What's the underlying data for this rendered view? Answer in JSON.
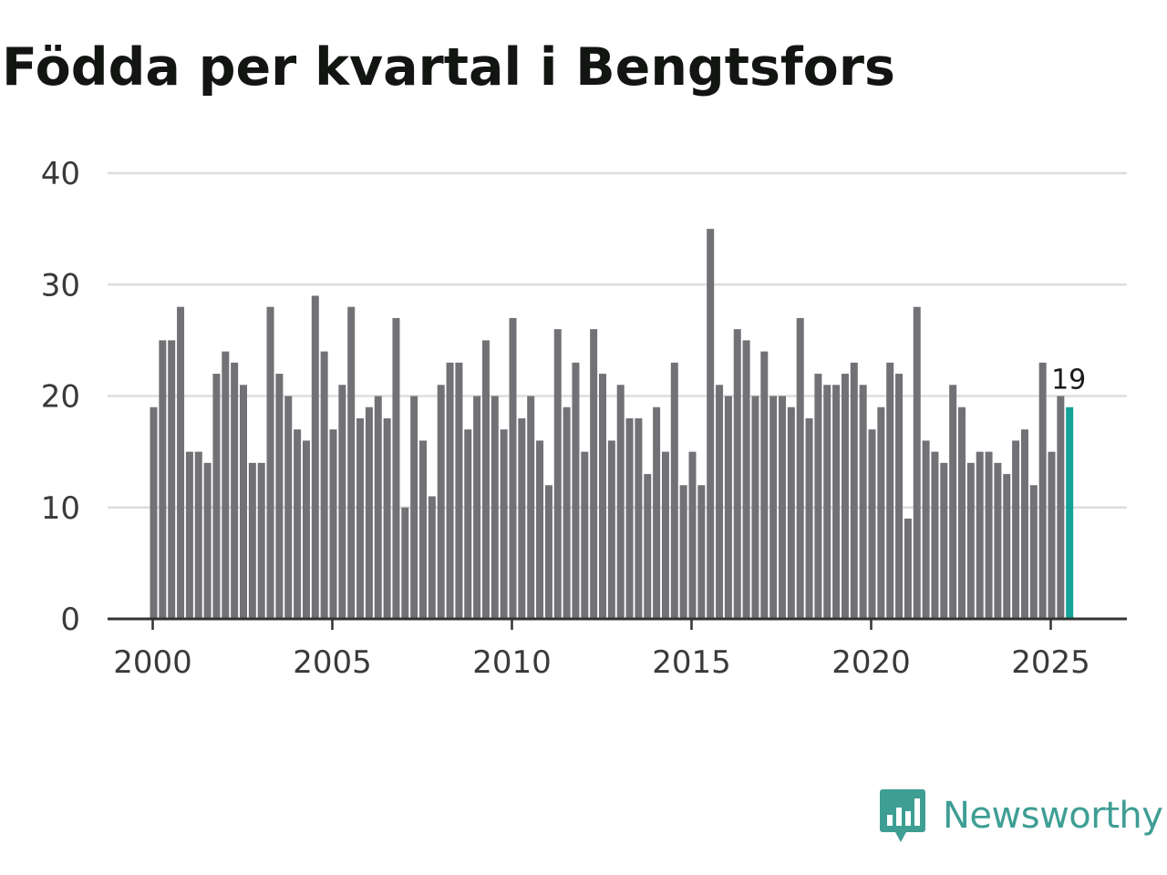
{
  "title": "Födda per kvartal i Bengtsfors",
  "brand": {
    "name": "Newsworthy",
    "icon": "newsworthy-logo-icon",
    "color": "#3e9e94"
  },
  "colors": {
    "bar": "#727175",
    "highlight": "#14a396",
    "grid": "#dddddd",
    "axis": "#333333"
  },
  "chart_data": {
    "type": "bar",
    "title": "Födda per kvartal i Bengtsfors",
    "xlabel": "",
    "ylabel": "",
    "ylim": [
      0,
      40
    ],
    "yticks": [
      0,
      10,
      20,
      30,
      40
    ],
    "xticks": [
      "2000",
      "2005",
      "2010",
      "2015",
      "2020",
      "2025"
    ],
    "xtick_years": [
      2000,
      2005,
      2010,
      2015,
      2020,
      2025
    ],
    "x_start": 2000,
    "periods_per_year": 4,
    "grid": true,
    "series": [
      {
        "name": "Födda",
        "values": [
          19,
          25,
          25,
          28,
          15,
          15,
          14,
          22,
          24,
          23,
          21,
          14,
          14,
          28,
          22,
          20,
          17,
          16,
          29,
          24,
          17,
          21,
          28,
          18,
          19,
          20,
          18,
          27,
          10,
          20,
          16,
          11,
          21,
          23,
          23,
          17,
          20,
          25,
          20,
          17,
          27,
          18,
          20,
          16,
          12,
          26,
          19,
          23,
          15,
          26,
          22,
          16,
          21,
          18,
          18,
          13,
          19,
          15,
          23,
          12,
          15,
          12,
          35,
          21,
          20,
          26,
          25,
          20,
          24,
          20,
          20,
          19,
          27,
          18,
          22,
          21,
          21,
          22,
          23,
          21,
          17,
          19,
          23,
          22,
          9,
          28,
          16,
          15,
          14,
          21,
          19,
          14,
          15,
          15,
          14,
          13,
          16,
          17,
          12,
          23,
          15,
          20,
          19
        ]
      }
    ],
    "highlight": {
      "index": 102,
      "label": "19"
    }
  }
}
